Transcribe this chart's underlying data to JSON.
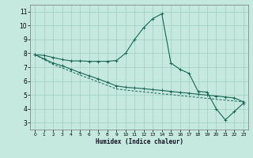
{
  "xlabel": "Humidex (Indice chaleur)",
  "bg_color": "#c5e8df",
  "grid_color": "#9ecfbf",
  "line_color": "#1a6655",
  "xlim": [
    -0.5,
    23.5
  ],
  "ylim": [
    2.5,
    11.5
  ],
  "xticks": [
    0,
    1,
    2,
    3,
    4,
    5,
    6,
    7,
    8,
    9,
    10,
    11,
    12,
    13,
    14,
    15,
    16,
    17,
    18,
    19,
    20,
    21,
    22,
    23
  ],
  "yticks": [
    3,
    4,
    5,
    6,
    7,
    8,
    9,
    10,
    11
  ],
  "curve1_x": [
    0,
    1,
    2,
    3,
    4,
    5,
    6,
    7,
    8,
    9,
    10,
    11,
    12,
    13,
    14,
    15,
    16,
    17,
    18,
    19,
    20,
    21,
    22,
    23
  ],
  "curve1_y": [
    7.9,
    7.85,
    7.7,
    7.55,
    7.45,
    7.45,
    7.42,
    7.42,
    7.42,
    7.48,
    8.0,
    9.0,
    9.85,
    10.5,
    10.85,
    7.3,
    6.85,
    6.55,
    5.25,
    5.2,
    4.0,
    3.2,
    3.8,
    4.4
  ],
  "curve2_x": [
    0,
    1,
    2,
    3,
    4,
    5,
    6,
    7,
    8,
    9,
    10,
    11,
    12,
    13,
    14,
    15,
    16,
    17,
    18,
    19,
    20,
    21,
    22,
    23
  ],
  "curve2_y": [
    7.9,
    7.6,
    7.3,
    7.1,
    6.85,
    6.6,
    6.37,
    6.15,
    5.9,
    5.65,
    5.55,
    5.5,
    5.45,
    5.38,
    5.32,
    5.25,
    5.18,
    5.12,
    5.05,
    4.98,
    4.92,
    4.85,
    4.78,
    4.5
  ],
  "curve3_x": [
    0,
    1,
    2,
    3,
    4,
    5,
    6,
    7,
    8,
    9,
    10,
    11,
    12,
    13,
    14,
    15,
    16,
    17,
    18,
    19,
    20,
    21,
    22,
    23
  ],
  "curve3_y": [
    7.9,
    7.55,
    7.2,
    6.95,
    6.68,
    6.42,
    6.18,
    5.93,
    5.68,
    5.43,
    5.35,
    5.28,
    5.22,
    5.15,
    5.08,
    5.02,
    4.95,
    4.88,
    4.82,
    4.75,
    4.68,
    4.62,
    4.56,
    4.5
  ]
}
